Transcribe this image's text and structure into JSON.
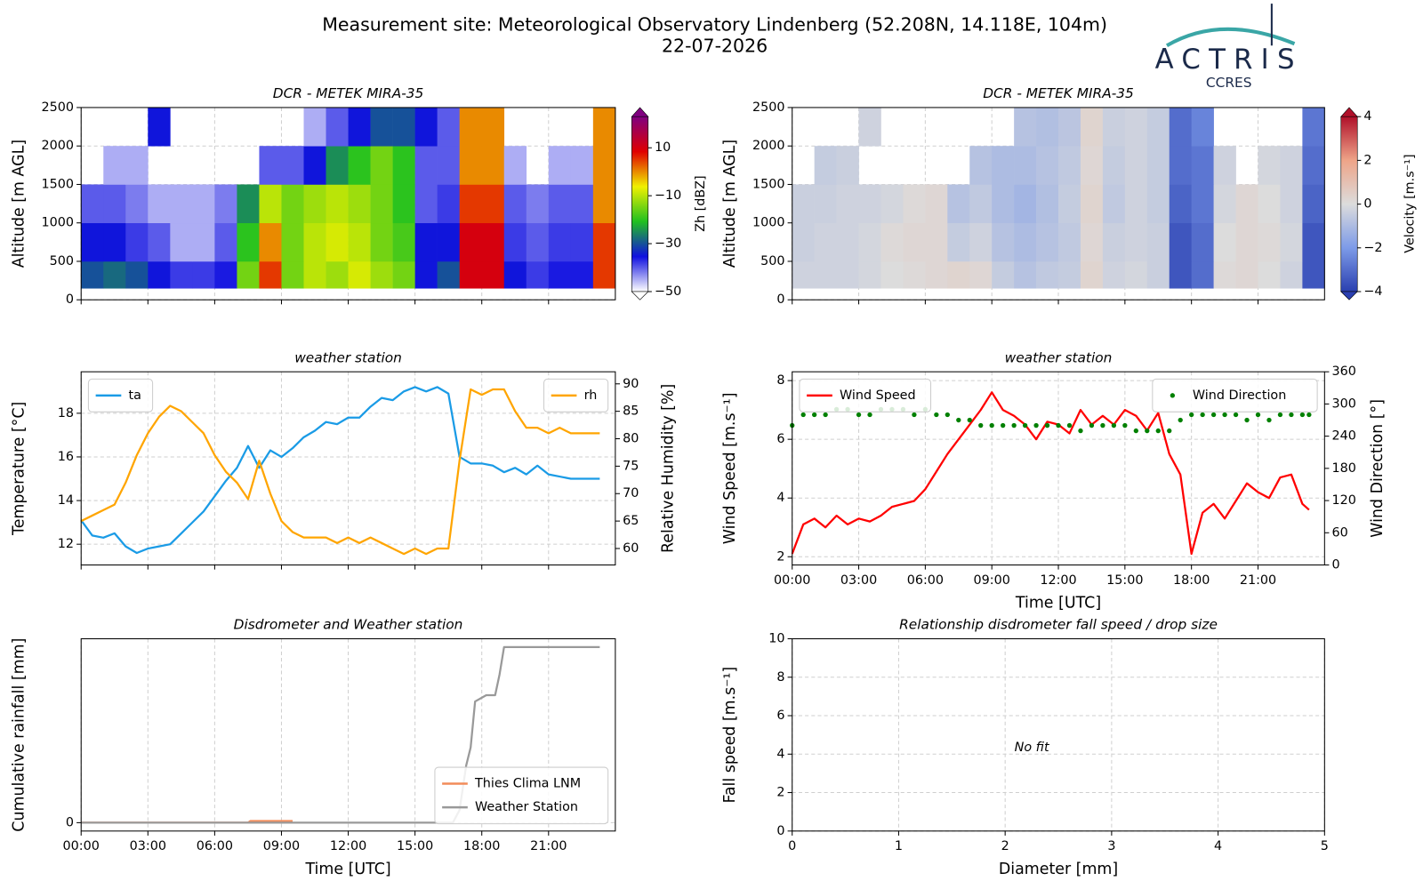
{
  "header": {
    "title": "Measurement site: Meteorological Observatory Lindenberg (52.208N, 14.118E, 104m)",
    "date": "22-07-2026",
    "logo": "ACTRIS",
    "logo_sub": "CCRES"
  },
  "chart_data": [
    {
      "type": "heatmap",
      "title": "DCR - METEK MIRA-35",
      "ylabel": "Altitude [m AGL]",
      "xlim": [
        0,
        24
      ],
      "xticks": [
        0,
        3,
        6,
        9,
        12,
        15,
        18,
        21
      ],
      "show_xtick_labels": false,
      "ylim": [
        0,
        2500
      ],
      "yticks": [
        0,
        500,
        1000,
        1500,
        2000,
        2500
      ],
      "grid": true,
      "xbins": [
        0,
        1,
        2,
        3,
        4,
        5,
        6,
        7,
        8,
        9,
        10,
        11,
        12,
        13,
        14,
        15,
        16,
        17,
        18,
        19,
        20,
        21,
        22,
        23,
        24
      ],
      "ybins": [
        150,
        500,
        1000,
        1500,
        2000,
        2500
      ],
      "z": [
        [
          -30,
          -28,
          -30,
          -35,
          -38,
          -38,
          -36,
          -15,
          5,
          -15,
          -10,
          -12,
          -8,
          -12,
          -15,
          -35,
          -30,
          10,
          10,
          -35,
          -38,
          -36,
          -36,
          5
        ],
        [
          -35,
          -35,
          -38,
          -40,
          -45,
          -45,
          -40,
          -20,
          0,
          -15,
          -10,
          -8,
          -10,
          -15,
          -18,
          -35,
          -35,
          10,
          10,
          -38,
          -40,
          -38,
          -38,
          5
        ],
        [
          -40,
          -40,
          -42,
          -45,
          -45,
          -45,
          -42,
          -25,
          -10,
          -15,
          -12,
          -10,
          -12,
          -15,
          -20,
          -40,
          -38,
          5,
          5,
          -40,
          -42,
          -40,
          -40,
          0
        ],
        [
          null,
          -45,
          -45,
          null,
          null,
          null,
          null,
          null,
          -40,
          -40,
          -35,
          -25,
          -20,
          -15,
          -20,
          -40,
          -40,
          0,
          0,
          -45,
          null,
          -45,
          -45,
          0
        ],
        [
          null,
          null,
          null,
          -35,
          null,
          null,
          null,
          null,
          null,
          null,
          -45,
          -40,
          -35,
          -30,
          -30,
          -35,
          -40,
          0,
          0,
          null,
          null,
          null,
          null,
          0
        ]
      ],
      "zlim": [
        -50,
        23
      ],
      "zticks": [
        {
          "value": 10,
          "label": "10"
        },
        {
          "value": -10,
          "label": "−10"
        },
        {
          "value": -30,
          "label": "−30"
        },
        {
          "value": -50,
          "label": "−50"
        }
      ],
      "colormap": [
        "#ffffff",
        "#1010e0",
        "#20c020",
        "#f0f000",
        "#e00000",
        "#800080"
      ],
      "colorbar_label": "Zh [dBZ]"
    },
    {
      "type": "heatmap",
      "title": "DCR - METEK MIRA-35",
      "ylabel": "Altitude [m AGL]",
      "xlim": [
        0,
        24
      ],
      "xticks": [
        0,
        3,
        6,
        9,
        12,
        15,
        18,
        21
      ],
      "show_xtick_labels": false,
      "ylim": [
        0,
        2500
      ],
      "yticks": [
        0,
        500,
        1000,
        1500,
        2000,
        2500
      ],
      "grid": true,
      "xbins": [
        0,
        1,
        2,
        3,
        4,
        5,
        6,
        7,
        8,
        9,
        10,
        11,
        12,
        13,
        14,
        15,
        16,
        17,
        18,
        19,
        20,
        21,
        22,
        23,
        24
      ],
      "ybins": [
        150,
        500,
        1000,
        1500,
        2000,
        2500
      ],
      "z": [
        [
          -0.3,
          -0.3,
          -0.3,
          -0.2,
          0,
          0.1,
          0.2,
          0.3,
          0.2,
          -0.5,
          -0.8,
          -0.6,
          -0.5,
          0.3,
          -0.3,
          -0.2,
          -0.4,
          -3.5,
          -3.0,
          0.1,
          0.2,
          0,
          -0.3,
          -3.5
        ],
        [
          -0.4,
          -0.3,
          -0.3,
          -0.2,
          0.1,
          0.2,
          0.2,
          -0.5,
          -0.3,
          -0.8,
          -1.0,
          -0.8,
          -0.6,
          0.2,
          -0.4,
          -0.3,
          -0.4,
          -3.5,
          -3.0,
          0,
          0.2,
          0.1,
          -0.2,
          -3.5
        ],
        [
          -0.4,
          -0.4,
          -0.3,
          -0.3,
          -0.2,
          0.1,
          0.2,
          -0.8,
          -0.6,
          -1.0,
          -1.2,
          -0.9,
          -0.5,
          0.3,
          -0.6,
          -0.3,
          -0.5,
          -3.2,
          -2.8,
          -0.2,
          0.2,
          0,
          -0.3,
          -3.2
        ],
        [
          null,
          -0.5,
          -0.4,
          null,
          null,
          null,
          null,
          null,
          -0.8,
          -1.0,
          -1.0,
          -0.8,
          -0.6,
          0.2,
          -0.5,
          -0.3,
          -0.5,
          -3.0,
          -2.8,
          -0.3,
          null,
          -0.2,
          -0.3,
          -3.0
        ],
        [
          null,
          null,
          null,
          -0.3,
          null,
          null,
          null,
          null,
          null,
          null,
          -0.8,
          -0.9,
          -0.7,
          0.3,
          -0.4,
          -0.3,
          -0.5,
          -3.0,
          -2.5,
          null,
          null,
          null,
          null,
          -2.8
        ]
      ],
      "zlim": [
        -4,
        4
      ],
      "zticks": [
        {
          "value": 4,
          "label": "4"
        },
        {
          "value": 2,
          "label": "2"
        },
        {
          "value": 0,
          "label": "0"
        },
        {
          "value": -2,
          "label": "−2"
        },
        {
          "value": -4,
          "label": "−4"
        }
      ],
      "colormap": [
        "#2a3fb0",
        "#7d9be8",
        "#dcdcdc",
        "#eea488",
        "#b0102a"
      ],
      "colorbar_label": "Velocity [m.s⁻¹]"
    },
    {
      "type": "line",
      "title": "weather station",
      "ylabel": "Temperature [°C]",
      "y2label": "Relative Humidity [%]",
      "xlim": [
        0,
        24
      ],
      "xticks": [
        0,
        3,
        6,
        9,
        12,
        15,
        18,
        21
      ],
      "show_xtick_labels": false,
      "ylim": [
        11.05,
        19.9
      ],
      "yticks": [
        12,
        14,
        16,
        18
      ],
      "y2lim": [
        57,
        92.2
      ],
      "y2ticks": [
        60,
        65,
        70,
        75,
        80,
        85,
        90
      ],
      "grid": true,
      "series": [
        {
          "name": "ta",
          "color": "#1a9be6",
          "legend": "upper left",
          "x": [
            0,
            0.5,
            1,
            1.5,
            2,
            2.5,
            3,
            3.5,
            4,
            4.5,
            5,
            5.5,
            6,
            6.5,
            7,
            7.5,
            8,
            8.5,
            9,
            9.5,
            10,
            10.5,
            11,
            11.5,
            12,
            12.5,
            13,
            13.5,
            14,
            14.5,
            15,
            15.5,
            16,
            16.5,
            17,
            17.5,
            18,
            18.5,
            19,
            19.5,
            20,
            20.5,
            21,
            21.5,
            22,
            22.5,
            23.3
          ],
          "values": [
            13.1,
            12.4,
            12.3,
            12.5,
            11.9,
            11.6,
            11.8,
            11.9,
            12.0,
            12.5,
            13.0,
            13.5,
            14.2,
            14.9,
            15.5,
            16.5,
            15.5,
            16.3,
            16.0,
            16.4,
            16.9,
            17.2,
            17.6,
            17.5,
            17.8,
            17.8,
            18.3,
            18.7,
            18.6,
            19.0,
            19.2,
            19.0,
            19.2,
            18.9,
            16.0,
            15.7,
            15.7,
            15.6,
            15.3,
            15.5,
            15.2,
            15.6,
            15.2,
            15.1,
            15.0,
            15.0,
            15.0
          ]
        },
        {
          "name": "rh",
          "color": "#ffa500",
          "axis": "y2",
          "legend": "upper right",
          "x": [
            0,
            0.5,
            1,
            1.5,
            2,
            2.5,
            3,
            3.5,
            4,
            4.5,
            5,
            5.5,
            6,
            6.5,
            7,
            7.5,
            8,
            8.5,
            9,
            9.5,
            10,
            10.5,
            11,
            11.5,
            12,
            12.5,
            13,
            13.5,
            14,
            14.5,
            15,
            15.5,
            16,
            16.5,
            17,
            17.5,
            18,
            18.5,
            19,
            19.5,
            20,
            20.5,
            21,
            21.5,
            22,
            22.5,
            23.3
          ],
          "values": [
            65,
            66,
            67,
            68,
            72,
            77,
            81,
            84,
            86,
            85,
            83,
            81,
            77,
            74,
            72,
            69,
            76,
            70,
            65,
            63,
            62,
            62,
            62,
            61,
            62,
            61,
            62,
            61,
            60,
            59,
            60,
            59,
            60,
            60,
            76,
            89,
            88,
            89,
            89,
            85,
            82,
            82,
            81,
            82,
            81,
            81,
            81
          ]
        }
      ]
    },
    {
      "type": "line",
      "title": "weather station",
      "ylabel": "Wind Speed [m.s⁻¹]",
      "y2label": "Wind Direction [°]",
      "xlabel": "Time [UTC]",
      "xlim": [
        0,
        24
      ],
      "xticks": [
        {
          "value": 0,
          "label": "00:00"
        },
        {
          "value": 3,
          "label": "03:00"
        },
        {
          "value": 6,
          "label": "06:00"
        },
        {
          "value": 9,
          "label": "09:00"
        },
        {
          "value": 12,
          "label": "12:00"
        },
        {
          "value": 15,
          "label": "15:00"
        },
        {
          "value": 18,
          "label": "18:00"
        },
        {
          "value": 21,
          "label": "21:00"
        }
      ],
      "ylim": [
        1.72,
        8.3
      ],
      "yticks": [
        2,
        4,
        6,
        8
      ],
      "y2lim": [
        0,
        360
      ],
      "y2ticks": [
        0,
        60,
        120,
        180,
        240,
        300,
        360
      ],
      "grid": true,
      "series": [
        {
          "name": "Wind Speed",
          "color": "#ff0000",
          "legend": "upper left",
          "x": [
            0,
            0.5,
            1,
            1.5,
            2,
            2.5,
            3,
            3.5,
            4,
            4.5,
            5,
            5.5,
            6,
            6.5,
            7,
            7.5,
            8,
            8.5,
            9,
            9.5,
            10,
            10.5,
            11,
            11.5,
            12,
            12.5,
            13,
            13.5,
            14,
            14.5,
            15,
            15.5,
            16,
            16.5,
            17,
            17.5,
            18,
            18.5,
            19,
            19.5,
            20,
            20.5,
            21,
            21.5,
            22,
            22.5,
            23,
            23.3
          ],
          "values": [
            2.1,
            3.1,
            3.3,
            3.0,
            3.4,
            3.1,
            3.3,
            3.2,
            3.4,
            3.7,
            3.8,
            3.9,
            4.3,
            4.9,
            5.5,
            6.0,
            6.5,
            7.0,
            7.6,
            7.0,
            6.8,
            6.5,
            6.0,
            6.6,
            6.5,
            6.2,
            7.0,
            6.5,
            6.8,
            6.5,
            7.0,
            6.8,
            6.3,
            6.9,
            5.5,
            4.8,
            2.1,
            3.5,
            3.8,
            3.3,
            3.9,
            4.5,
            4.2,
            4.0,
            4.7,
            4.8,
            3.8,
            3.6
          ]
        },
        {
          "name": "Wind Direction",
          "color": "#008000",
          "axis": "y2",
          "style": "markers",
          "legend": "upper right",
          "x": [
            0,
            0.5,
            1,
            1.5,
            2,
            2.5,
            3,
            3.5,
            4,
            4.5,
            5,
            5.5,
            6,
            6.5,
            7,
            7.5,
            8,
            8.5,
            9,
            9.5,
            10,
            10.5,
            11,
            11.5,
            12,
            12.5,
            13,
            13.5,
            14,
            14.5,
            15,
            15.5,
            16,
            16.5,
            17,
            17.5,
            18,
            18.5,
            19,
            19.5,
            20,
            20.5,
            21,
            21.5,
            22,
            22.5,
            23,
            23.3
          ],
          "values": [
            260,
            280,
            280,
            280,
            290,
            290,
            280,
            280,
            290,
            290,
            290,
            280,
            290,
            280,
            280,
            270,
            270,
            260,
            260,
            260,
            260,
            260,
            260,
            260,
            260,
            260,
            250,
            260,
            260,
            260,
            260,
            250,
            250,
            250,
            250,
            270,
            280,
            280,
            280,
            280,
            280,
            270,
            280,
            270,
            280,
            280,
            280,
            280
          ]
        }
      ]
    },
    {
      "type": "line",
      "title": "Disdrometer and Weather station",
      "ylabel": "Cumulative rainfall [mm]",
      "xlabel": "Time [UTC]",
      "xlim": [
        0,
        24
      ],
      "xticks": [
        {
          "value": 0,
          "label": "00:00"
        },
        {
          "value": 3,
          "label": "03:00"
        },
        {
          "value": 6,
          "label": "06:00"
        },
        {
          "value": 9,
          "label": "09:00"
        },
        {
          "value": 12,
          "label": "12:00"
        },
        {
          "value": 15,
          "label": "15:00"
        },
        {
          "value": 18,
          "label": "18:00"
        },
        {
          "value": 21,
          "label": "21:00"
        }
      ],
      "ylim": [
        -0.2,
        4.4
      ],
      "yticks": [
        0
      ],
      "grid": true,
      "series": [
        {
          "name": "Thies Clima LNM",
          "color": "#f28c5a",
          "legend": "lower right",
          "x": [
            0,
            7.5,
            7.6,
            9.5
          ],
          "values": [
            0,
            0,
            0.04,
            0.04
          ]
        },
        {
          "name": "Weather Station",
          "color": "#999999",
          "legend": "lower right",
          "x": [
            0,
            16.7,
            17.0,
            17.3,
            17.5,
            17.7,
            18.2,
            18.6,
            18.8,
            19.0,
            23.3
          ],
          "values": [
            0,
            0,
            0.3,
            1.37,
            1.8,
            2.9,
            3.05,
            3.05,
            3.55,
            4.2,
            4.2
          ]
        }
      ]
    },
    {
      "type": "scatter",
      "title": "Relationship disdrometer fall speed / drop size",
      "ylabel": "Fall speed [m.s⁻¹]",
      "xlabel": "Diameter [mm]",
      "xlim": [
        0,
        5
      ],
      "xticks": [
        0,
        1,
        2,
        3,
        4,
        5
      ],
      "ylim": [
        0,
        10
      ],
      "yticks": [
        0,
        2,
        4,
        6,
        8,
        10
      ],
      "grid": true,
      "annotation": "No fit",
      "series": []
    }
  ]
}
